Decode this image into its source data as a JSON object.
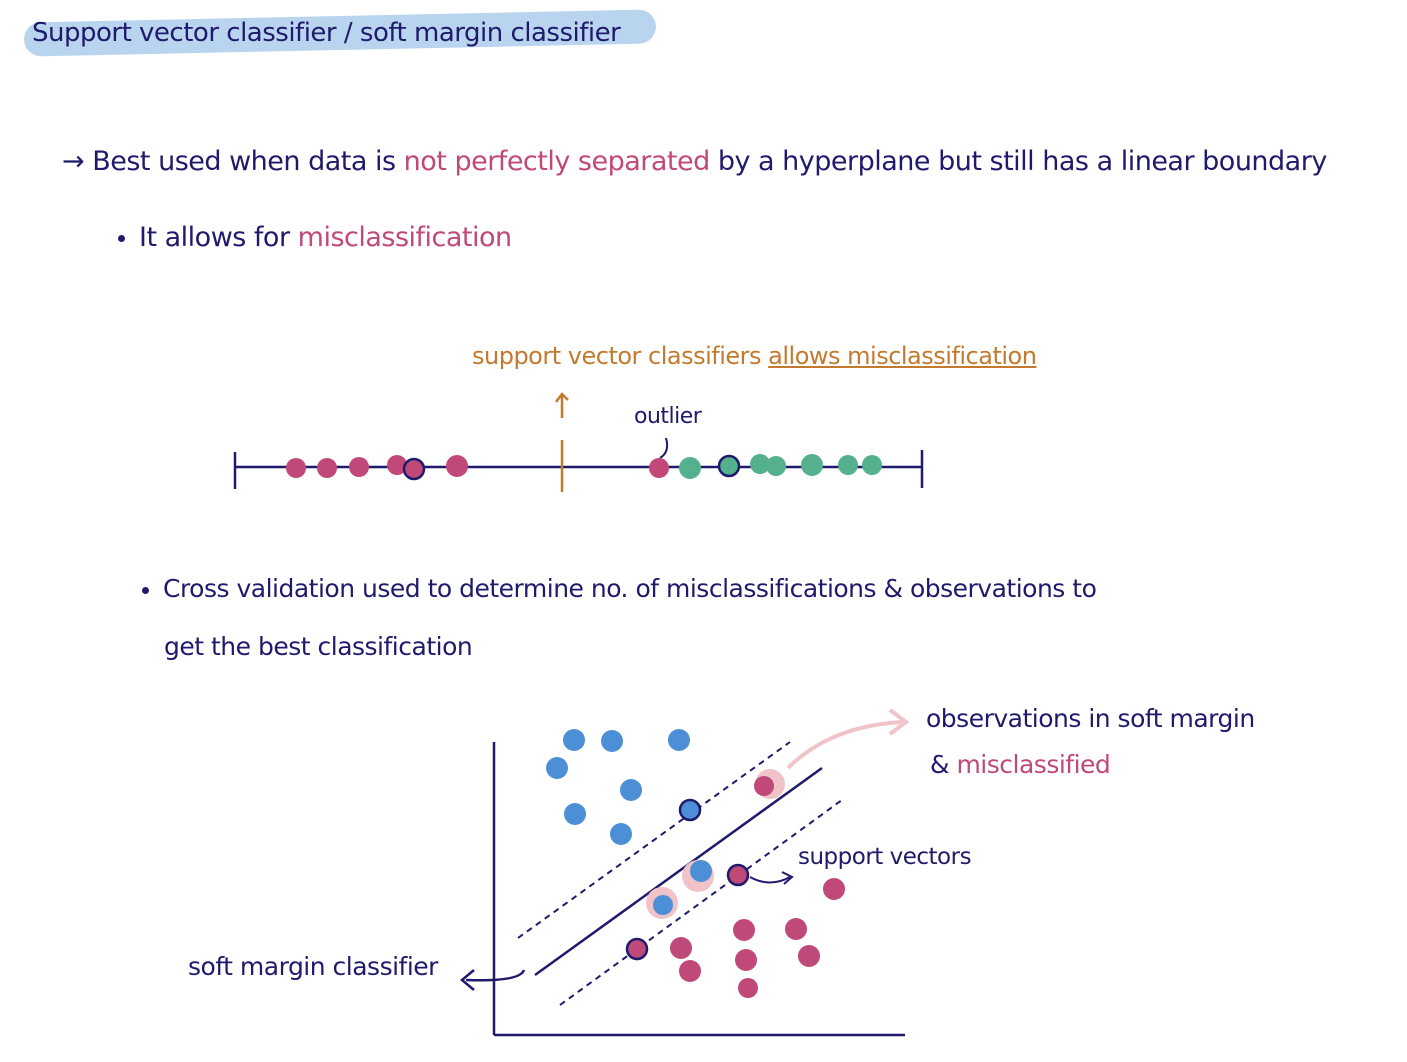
{
  "title": "Support vector classifier / soft margin classifier",
  "line1": {
    "arrow": "→",
    "text_a": "Best used when data is ",
    "highlight": "not perfectly separated",
    "text_b": " by a hyperplane but still has a linear boundary"
  },
  "line2": {
    "text_a": "It allows for ",
    "highlight": "misclassification"
  },
  "number_line": {
    "caption_a": "support vector classifiers ",
    "caption_b": "allows misclassification",
    "outlier_label": "outlier"
  },
  "line3": {
    "text_a": "Cross validation used to determine no. of misclassifications & observations to",
    "text_b": "get the best classification"
  },
  "scatter": {
    "annotation_a": "observations in soft margin",
    "annotation_b_prefix": "& ",
    "annotation_b_highlight": "misclassified",
    "support_vectors_label": "support vectors",
    "classifier_label": "soft margin classifier"
  },
  "colors": {
    "ink": "#1f1a6b",
    "pink": "#c0497a",
    "green": "#55b08e",
    "blue": "#4d8fd6",
    "orange": "#c37a2f",
    "highlight": "#b9d4ee",
    "halo": "#f0c3c8"
  }
}
